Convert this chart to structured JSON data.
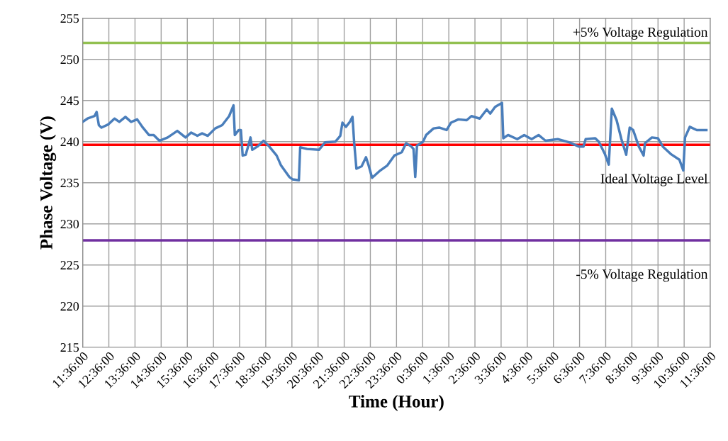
{
  "chart_data": {
    "type": "line",
    "xlabel": "Time (Hour)",
    "ylabel": "Phase Voltage (V)",
    "xlim": [
      "2000-01-01T11:36",
      "2000-01-02T11:36"
    ],
    "xticks": [
      {
        "value": "2000-01-01T11:36",
        "label": "11:36:00"
      },
      {
        "value": "2000-01-01T12:36",
        "label": "12:36:00"
      },
      {
        "value": "2000-01-01T13:36",
        "label": "13:36:00"
      },
      {
        "value": "2000-01-01T14:36",
        "label": "14:36:00"
      },
      {
        "value": "2000-01-01T15:36",
        "label": "15:36:00"
      },
      {
        "value": "2000-01-01T16:36",
        "label": "16:36:00"
      },
      {
        "value": "2000-01-01T17:36",
        "label": "17:36:00"
      },
      {
        "value": "2000-01-01T18:36",
        "label": "18:36:00"
      },
      {
        "value": "2000-01-01T19:36",
        "label": "19:36:00"
      },
      {
        "value": "2000-01-01T20:36",
        "label": "20:36:00"
      },
      {
        "value": "2000-01-01T21:36",
        "label": "21:36:00"
      },
      {
        "value": "2000-01-01T22:36",
        "label": "22:36:00"
      },
      {
        "value": "2000-01-01T23:36",
        "label": "23:36:00"
      },
      {
        "value": "2000-01-02T00:36",
        "label": "0:36:00"
      },
      {
        "value": "2000-01-02T01:36",
        "label": "1:36:00"
      },
      {
        "value": "2000-01-02T02:36",
        "label": "2:36:00"
      },
      {
        "value": "2000-01-02T03:36",
        "label": "3:36:00"
      },
      {
        "value": "2000-01-02T04:36",
        "label": "4:36:00"
      },
      {
        "value": "2000-01-02T05:36",
        "label": "5:36:00"
      },
      {
        "value": "2000-01-02T06:36",
        "label": "6:36:00"
      },
      {
        "value": "2000-01-02T07:36",
        "label": "7:36:00"
      },
      {
        "value": "2000-01-02T08:36",
        "label": "8:36:00"
      },
      {
        "value": "2000-01-02T09:36",
        "label": "9:36:00"
      },
      {
        "value": "2000-01-02T10:36",
        "label": "10:36:00"
      },
      {
        "value": "2000-01-02T11:36",
        "label": "11:36:00"
      }
    ],
    "ylim": [
      215,
      255
    ],
    "yticks": [
      215,
      220,
      225,
      230,
      235,
      240,
      245,
      250,
      255
    ],
    "grid": true,
    "marker": "none",
    "line_style": "solid",
    "series": [
      {
        "color": "#4a7ebb",
        "x": [
          "2000-01-01T11:36",
          "2000-01-01T11:47",
          "2000-01-01T12:03",
          "2000-01-01T12:08",
          "2000-01-01T12:13",
          "2000-01-01T12:19",
          "2000-01-01T12:35",
          "2000-01-01T12:49",
          "2000-01-01T13:00",
          "2000-01-01T13:14",
          "2000-01-01T13:27",
          "2000-01-01T13:41",
          "2000-01-01T13:54",
          "2000-01-01T14:08",
          "2000-01-01T14:19",
          "2000-01-01T14:32",
          "2000-01-01T14:51",
          "2000-01-01T15:13",
          "2000-01-01T15:32",
          "2000-01-01T15:45",
          "2000-01-01T15:59",
          "2000-01-01T16:10",
          "2000-01-01T16:23",
          "2000-01-01T16:40",
          "2000-01-01T16:56",
          "2000-01-01T17:12",
          "2000-01-01T17:22",
          "2000-01-01T17:25",
          "2000-01-01T17:34",
          "2000-01-01T17:39",
          "2000-01-01T17:43",
          "2000-01-01T17:50",
          "2000-01-01T17:55",
          "2000-01-01T18:01",
          "2000-01-01T18:05",
          "2000-01-01T18:17",
          "2000-01-01T18:31",
          "2000-01-01T18:44",
          "2000-01-01T19:01",
          "2000-01-01T19:11",
          "2000-01-01T19:30",
          "2000-01-01T19:38",
          "2000-01-01T19:52",
          "2000-01-01T19:55",
          "2000-01-01T20:11",
          "2000-01-01T20:38",
          "2000-01-01T20:52",
          "2000-01-01T21:16",
          "2000-01-01T21:27",
          "2000-01-01T21:32",
          "2000-01-01T21:40",
          "2000-01-01T21:49",
          "2000-01-01T21:55",
          "2000-01-01T21:59",
          "2000-01-01T22:04",
          "2000-01-01T22:16",
          "2000-01-01T22:26",
          "2000-01-01T22:32",
          "2000-01-01T22:40",
          "2000-01-01T22:59",
          "2000-01-01T23:15",
          "2000-01-01T23:31",
          "2000-01-01T23:48",
          "2000-01-01T23:58",
          "2000-01-02T00:10",
          "2000-01-02T00:15",
          "2000-01-02T00:19",
          "2000-01-02T00:23",
          "2000-01-02T00:37",
          "2000-01-02T00:44",
          "2000-01-02T01:01",
          "2000-01-02T01:14",
          "2000-01-02T01:31",
          "2000-01-02T01:41",
          "2000-01-02T01:58",
          "2000-01-02T02:17",
          "2000-01-02T02:28",
          "2000-01-02T02:47",
          "2000-01-02T03:03",
          "2000-01-02T03:11",
          "2000-01-02T03:22",
          "2000-01-02T03:25",
          "2000-01-02T03:38",
          "2000-01-02T03:41",
          "2000-01-02T03:52",
          "2000-01-02T04:13",
          "2000-01-02T04:29",
          "2000-01-02T04:46",
          "2000-01-02T05:02",
          "2000-01-02T05:18",
          "2000-01-02T05:46",
          "2000-01-02T06:13",
          "2000-01-02T06:34",
          "2000-01-02T06:45",
          "2000-01-02T06:50",
          "2000-01-02T07:12",
          "2000-01-02T07:20",
          "2000-01-02T07:34",
          "2000-01-02T07:43",
          "2000-01-02T07:50",
          "2000-01-02T08:01",
          "2000-01-02T08:12",
          "2000-01-02T08:23",
          "2000-01-02T08:31",
          "2000-01-02T08:39",
          "2000-01-02T08:52",
          "2000-01-02T09:03",
          "2000-01-02T09:06",
          "2000-01-02T09:22",
          "2000-01-02T09:36",
          "2000-01-02T09:47",
          "2000-01-02T10:05",
          "2000-01-02T10:25",
          "2000-01-02T10:34",
          "2000-01-02T10:38",
          "2000-01-02T10:49",
          "2000-01-02T11:05",
          "2000-01-02T11:19",
          "2000-01-02T11:27"
        ],
        "values": [
          242.4,
          242.8,
          243.1,
          243.6,
          242.0,
          241.7,
          242.1,
          242.8,
          242.4,
          243.0,
          242.4,
          242.7,
          241.7,
          240.8,
          240.8,
          240.1,
          240.5,
          241.3,
          240.5,
          241.1,
          240.7,
          241.0,
          240.7,
          241.6,
          242.0,
          243.1,
          244.4,
          240.8,
          241.4,
          241.4,
          238.3,
          238.4,
          239.3,
          240.5,
          239.0,
          239.4,
          240.1,
          239.4,
          238.3,
          237.1,
          235.7,
          235.4,
          235.3,
          239.3,
          239.1,
          239.0,
          239.9,
          240.0,
          240.7,
          242.3,
          241.8,
          242.4,
          243.0,
          239.8,
          236.7,
          237.0,
          238.1,
          237.1,
          235.6,
          236.5,
          237.1,
          238.3,
          238.7,
          239.8,
          239.4,
          239.1,
          235.7,
          239.5,
          240.0,
          240.8,
          241.6,
          241.7,
          241.4,
          242.3,
          242.7,
          242.6,
          243.1,
          242.8,
          243.9,
          243.4,
          244.2,
          244.3,
          244.7,
          240.4,
          240.8,
          240.3,
          240.8,
          240.3,
          240.8,
          240.1,
          240.3,
          239.9,
          239.4,
          239.4,
          240.3,
          240.4,
          240.0,
          238.5,
          237.2,
          244.0,
          242.6,
          240.3,
          238.4,
          241.7,
          241.4,
          239.4,
          238.3,
          239.8,
          240.5,
          240.4,
          239.4,
          238.5,
          237.8,
          236.5,
          240.5,
          241.8,
          241.4,
          241.4,
          241.4
        ]
      }
    ],
    "ref_lines": [
      {
        "axis": "y",
        "value": 252,
        "label": "+5% Voltage Regulation",
        "color": "#92c050"
      },
      {
        "axis": "y",
        "value": 239.6,
        "label": "Ideal Voltage Level",
        "color": "#ff0000"
      },
      {
        "axis": "y",
        "value": 228,
        "label": "-5% Voltage Regulation",
        "color": "#7030a0"
      }
    ]
  }
}
